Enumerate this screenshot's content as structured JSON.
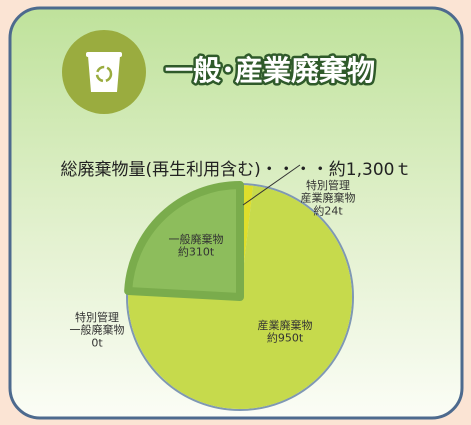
{
  "chart_data": {
    "type": "pie",
    "title": "一般･産業廃棄物",
    "subtitle": "総廃棄物量(再生利用含む)・・・・約1,300ｔ",
    "categories": [
      "特別管理\n産業廃棄物",
      "産業廃棄物",
      "特別管理\n一般廃棄物",
      "一般廃棄物"
    ],
    "values": [
      24,
      950,
      0,
      310
    ],
    "value_labels": [
      "約24t",
      "約950t",
      "0t",
      "約310t"
    ],
    "colors": [
      "#dede2c",
      "#c6da4c",
      "#a8c850",
      "#8dbd5c"
    ]
  }
}
